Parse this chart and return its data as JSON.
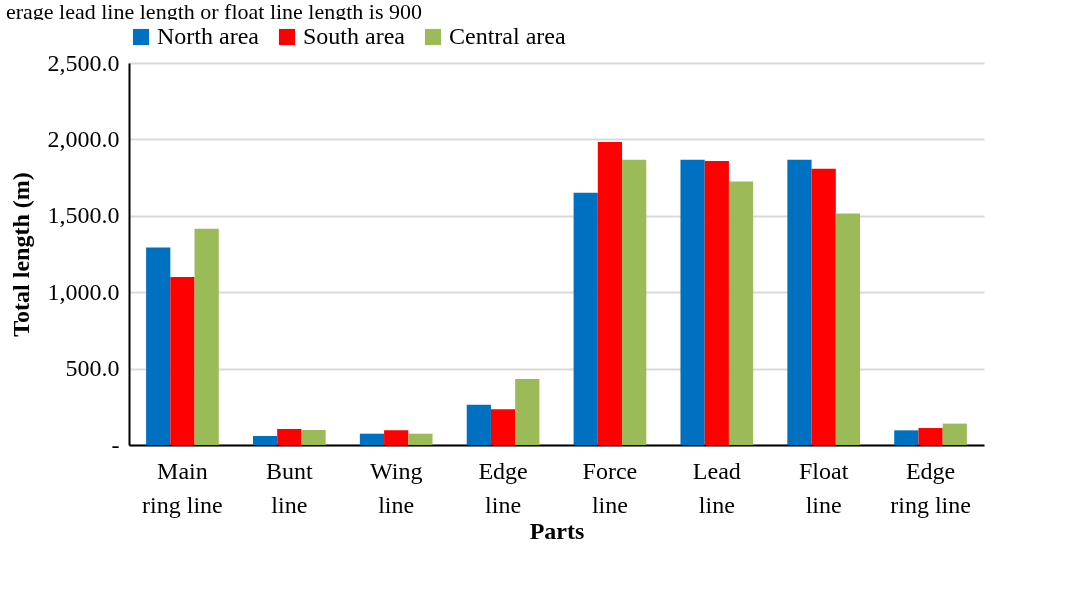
{
  "chart_data": {
    "type": "bar",
    "categories": [
      "Main ring line",
      "Bunt line",
      "Wing line",
      "Edge line",
      "Force line",
      "Lead line",
      "Float line",
      "Edge ring line"
    ],
    "series": [
      {
        "name": "North area",
        "color": "#0070c0",
        "values": [
          1293,
          59,
          74,
          264,
          1651,
          1867,
          1867,
          96
        ]
      },
      {
        "name": "South area",
        "color": "#ff0000",
        "values": [
          1100,
          105,
          96,
          234,
          1983,
          1858,
          1808,
          111
        ]
      },
      {
        "name": "Central area",
        "color": "#9bbb59",
        "values": [
          1415,
          98,
          74,
          432,
          1867,
          1725,
          1515,
          140
        ]
      }
    ],
    "xlabel": "Parts",
    "ylabel": "Total length (m)",
    "ylim": [
      0,
      2500
    ],
    "yticks": [
      {
        "value": 0,
        "label": "-"
      },
      {
        "value": 500,
        "label": "500.0"
      },
      {
        "value": 1000,
        "label": "1,000.0"
      },
      {
        "value": 1500,
        "label": "1,500.0"
      },
      {
        "value": 2000,
        "label": "2,000.0"
      },
      {
        "value": 2500,
        "label": "2,500.0"
      }
    ],
    "grid": "y",
    "legend": "top",
    "annotations": [
      "erage lead line length or float line length is 900"
    ]
  }
}
